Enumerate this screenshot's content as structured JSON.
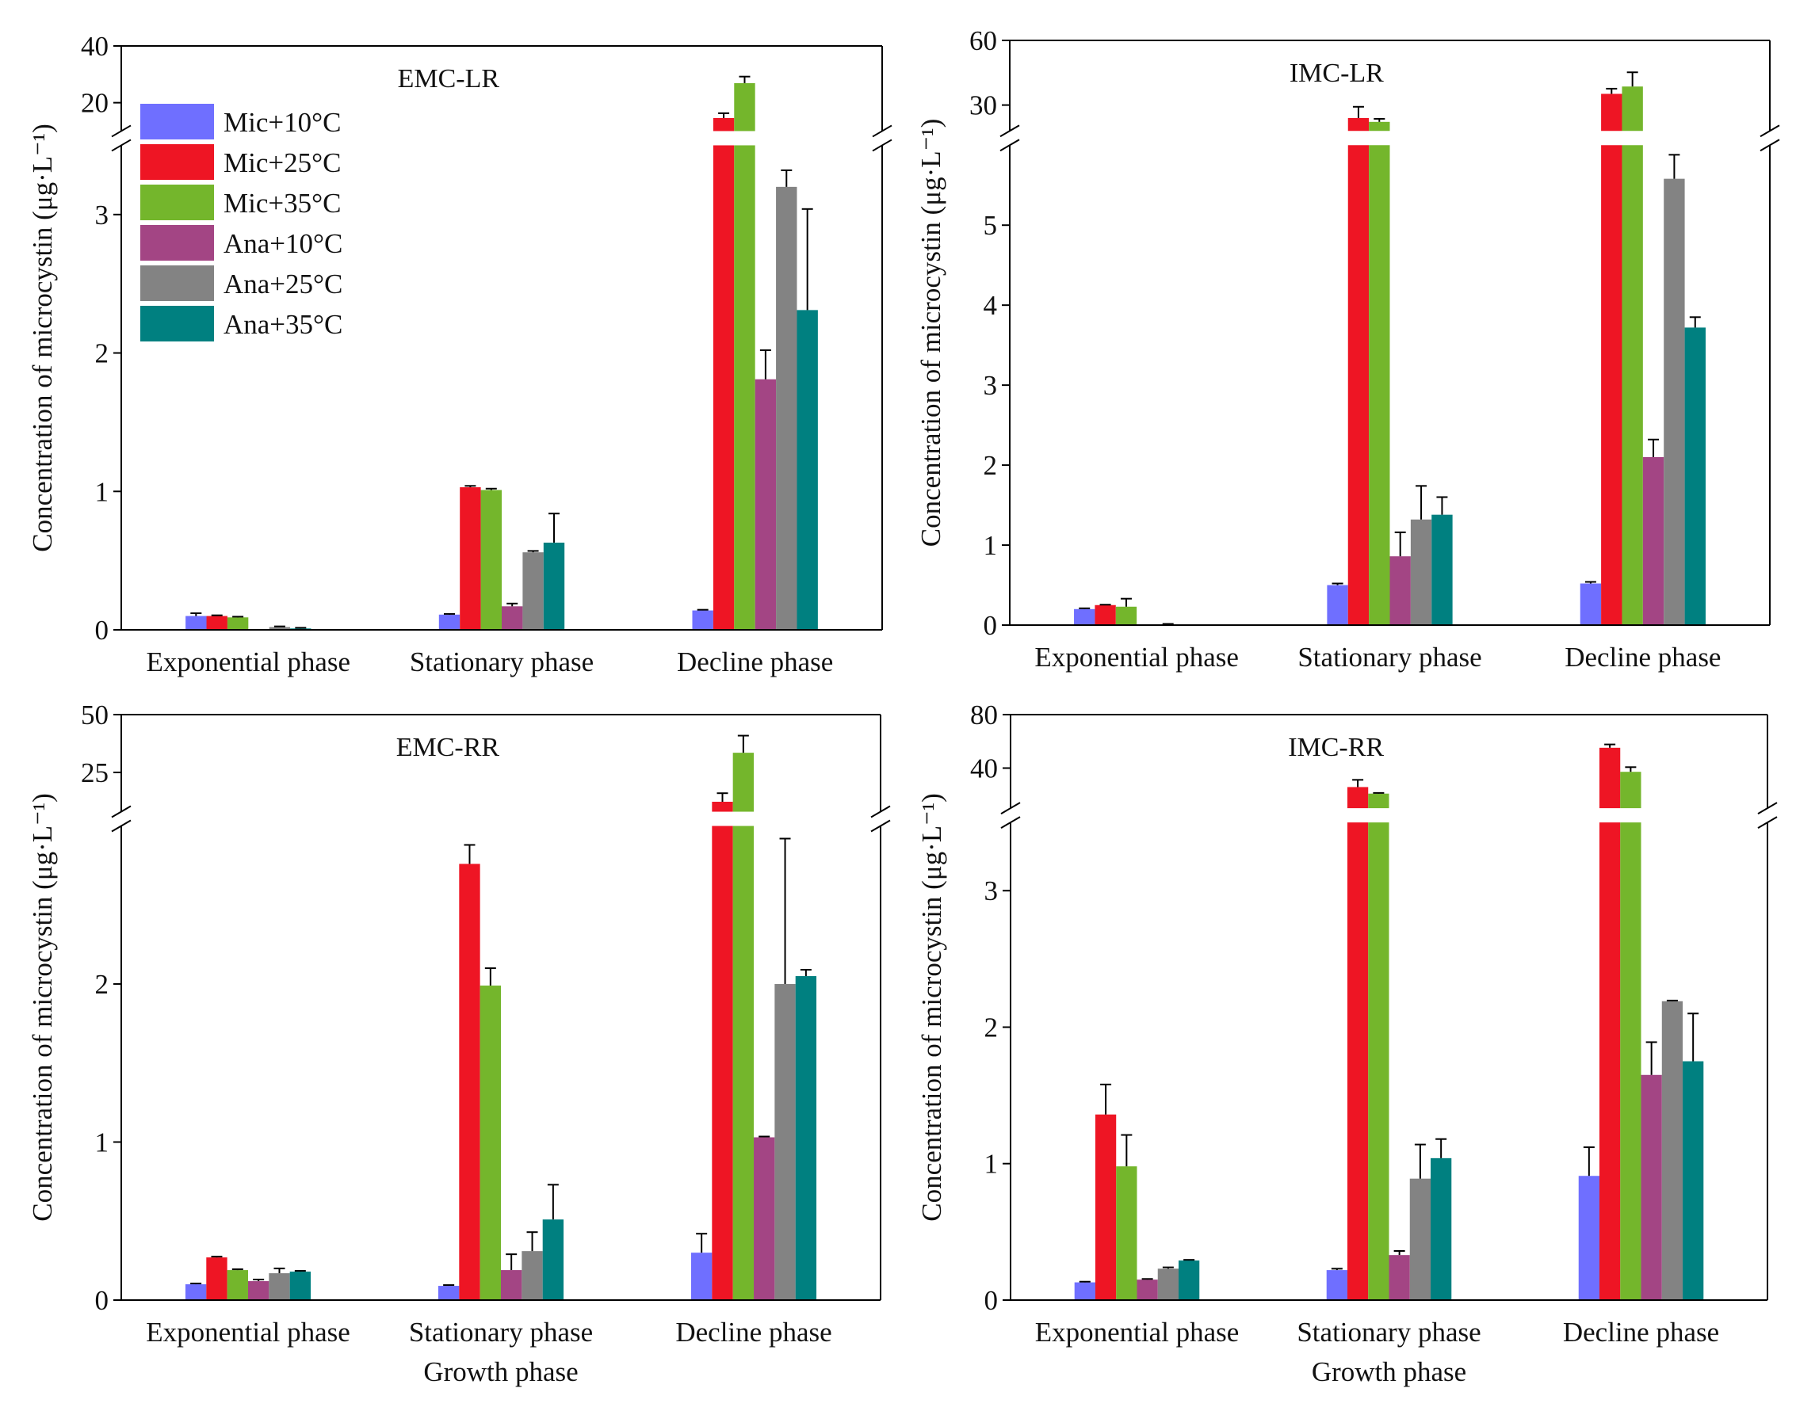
{
  "chart_data": [
    {
      "type": "bar",
      "title": "EMC-LR",
      "xlabel": "",
      "ylabel": "Concentration of microcystin (μg·L⁻¹)",
      "y_break": true,
      "ylim_lower": [
        0,
        3.5
      ],
      "ylim_upper": [
        10,
        40
      ],
      "yticks_lower": [
        0,
        1,
        2,
        3
      ],
      "yticks_upper": [
        20,
        40
      ],
      "categories": [
        "Exponential phase",
        "Stationary phase",
        "Decline phase"
      ],
      "series": [
        {
          "name": "Mic+10°C",
          "values": [
            0.1,
            0.11,
            0.14
          ],
          "errors": [
            0.02,
            0.005,
            0.005
          ]
        },
        {
          "name": "Mic+25°C",
          "values": [
            0.1,
            1.03,
            14.6
          ],
          "errors": [
            0.005,
            0.01,
            1.7
          ]
        },
        {
          "name": "Mic+35°C",
          "values": [
            0.09,
            1.01,
            26.9
          ],
          "errors": [
            0.005,
            0.01,
            2.3
          ]
        },
        {
          "name": "Ana+10°C",
          "values": [
            0.0,
            0.17,
            1.81
          ],
          "errors": [
            0,
            0.02,
            0.21
          ]
        },
        {
          "name": "Ana+25°C",
          "values": [
            0.02,
            0.56,
            3.2
          ],
          "errors": [
            0.005,
            0.01,
            0.12
          ]
        },
        {
          "name": "Ana+35°C",
          "values": [
            0.01,
            0.63,
            2.31
          ],
          "errors": [
            0.005,
            0.21,
            0.73
          ]
        }
      ],
      "legend": "top-left"
    },
    {
      "type": "bar",
      "title": "IMC-LR",
      "xlabel": "",
      "ylabel": "Concentration of microcystin (μg·L⁻¹)",
      "y_break": true,
      "ylim_lower": [
        0,
        6
      ],
      "ylim_upper": [
        18,
        60
      ],
      "yticks_lower": [
        0,
        1,
        2,
        3,
        4,
        5
      ],
      "yticks_upper": [
        30,
        60
      ],
      "categories": [
        "Exponential phase",
        "Stationary phase",
        "Decline phase"
      ],
      "series": [
        {
          "name": "Mic+10°C",
          "values": [
            0.2,
            0.5,
            0.52
          ],
          "errors": [
            0.01,
            0.02,
            0.02
          ]
        },
        {
          "name": "Mic+25°C",
          "values": [
            0.25,
            24.0,
            35.2
          ],
          "errors": [
            0.005,
            5.2,
            2.4
          ]
        },
        {
          "name": "Mic+35°C",
          "values": [
            0.23,
            22.2,
            38.6
          ],
          "errors": [
            0.1,
            1.4,
            6.6
          ]
        },
        {
          "name": "Ana+10°C",
          "values": [
            0.0,
            0.86,
            2.1
          ],
          "errors": [
            0,
            0.3,
            0.22
          ]
        },
        {
          "name": "Ana+25°C",
          "values": [
            0.01,
            1.32,
            5.58
          ],
          "errors": [
            0.005,
            0.42,
            0.3
          ]
        },
        {
          "name": "Ana+35°C",
          "values": [
            0.0,
            1.38,
            3.72
          ],
          "errors": [
            0,
            0.22,
            0.13
          ]
        }
      ]
    },
    {
      "type": "bar",
      "title": "EMC-RR",
      "xlabel": "Growth phase",
      "ylabel": "Concentration of microcystin (μg·L⁻¹)",
      "y_break": true,
      "ylim_lower": [
        0,
        3
      ],
      "ylim_upper": [
        8,
        50
      ],
      "yticks_lower": [
        0,
        1,
        2
      ],
      "yticks_upper": [
        25,
        50
      ],
      "categories": [
        "Exponential phase",
        "Stationary phase",
        "Decline phase"
      ],
      "series": [
        {
          "name": "Mic+10°C",
          "values": [
            0.1,
            0.09,
            0.3
          ],
          "errors": [
            0.005,
            0.005,
            0.12
          ]
        },
        {
          "name": "Mic+25°C",
          "values": [
            0.27,
            2.76,
            12.3
          ],
          "errors": [
            0.005,
            0.12,
            3.7
          ]
        },
        {
          "name": "Mic+35°C",
          "values": [
            0.19,
            1.99,
            33.5
          ],
          "errors": [
            0.005,
            0.11,
            7.4
          ]
        },
        {
          "name": "Ana+10°C",
          "values": [
            0.12,
            0.19,
            1.03
          ],
          "errors": [
            0.01,
            0.1,
            0.005
          ]
        },
        {
          "name": "Ana+25°C",
          "values": [
            0.17,
            0.31,
            2.0
          ],
          "errors": [
            0.03,
            0.12,
            0.92
          ]
        },
        {
          "name": "Ana+35°C",
          "values": [
            0.18,
            0.51,
            2.05
          ],
          "errors": [
            0.005,
            0.22,
            0.04
          ]
        }
      ]
    },
    {
      "type": "bar",
      "title": "IMC-RR",
      "xlabel": "Growth phase",
      "ylabel": "Concentration of microcystin (μg·L⁻¹)",
      "y_break": true,
      "ylim_lower": [
        0,
        3.5
      ],
      "ylim_upper": [
        10,
        80
      ],
      "yticks_lower": [
        0,
        1,
        2,
        3
      ],
      "yticks_upper": [
        40,
        80
      ],
      "categories": [
        "Exponential phase",
        "Stationary phase",
        "Decline phase"
      ],
      "series": [
        {
          "name": "Mic+10°C",
          "values": [
            0.13,
            0.22,
            0.91
          ],
          "errors": [
            0.005,
            0.01,
            0.21
          ]
        },
        {
          "name": "Mic+25°C",
          "values": [
            1.36,
            25.8,
            55.2
          ],
          "errors": [
            0.22,
            5.4,
            2.5
          ]
        },
        {
          "name": "Mic+35°C",
          "values": [
            0.98,
            20.9,
            37.2
          ],
          "errors": [
            0.23,
            0.5,
            3.5
          ]
        },
        {
          "name": "Ana+10°C",
          "values": [
            0.15,
            0.33,
            1.65
          ],
          "errors": [
            0.005,
            0.03,
            0.24
          ]
        },
        {
          "name": "Ana+25°C",
          "values": [
            0.23,
            0.89,
            2.19
          ],
          "errors": [
            0.01,
            0.25,
            0.005
          ]
        },
        {
          "name": "Ana+35°C",
          "values": [
            0.29,
            1.04,
            1.75
          ],
          "errors": [
            0.005,
            0.14,
            0.35
          ]
        }
      ]
    }
  ],
  "legend": {
    "items": [
      "Mic+10°C",
      "Mic+25°C",
      "Mic+35°C",
      "Ana+10°C",
      "Ana+25°C",
      "Ana+35°C"
    ],
    "colors": [
      "#6f6fff",
      "#ee1524",
      "#74b62c",
      "#a34584",
      "#838383",
      "#008080"
    ]
  }
}
